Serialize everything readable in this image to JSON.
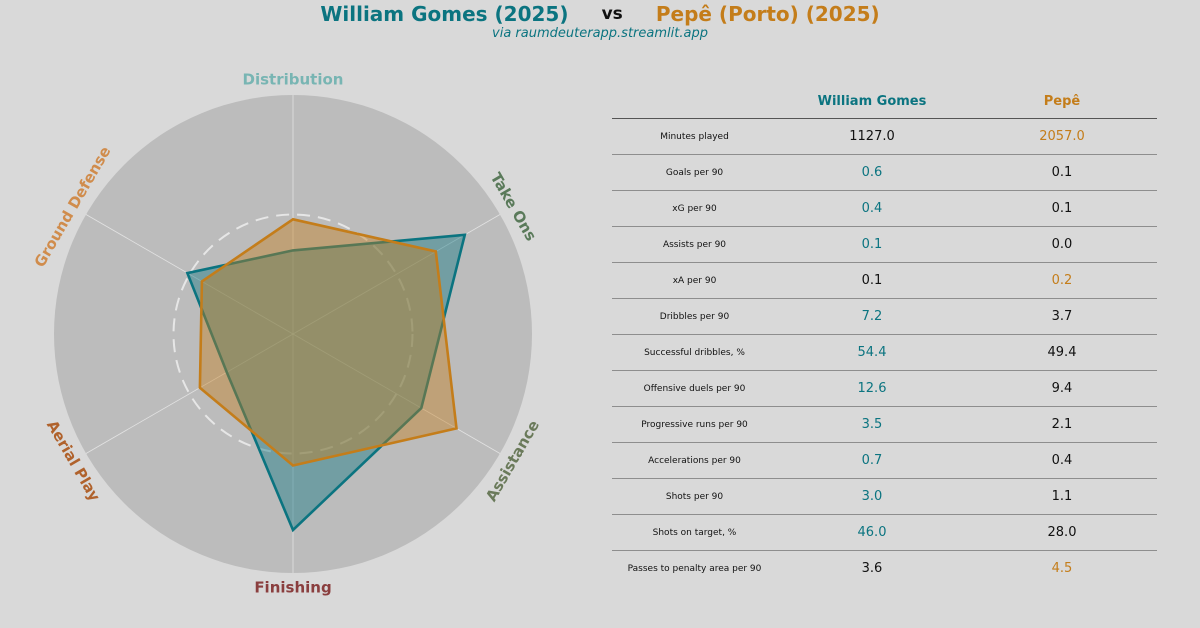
{
  "header": {
    "player1": "William Gomes (2025)",
    "vs": "vs",
    "player2": "Pepê (Porto) (2025)",
    "subtitle": "via raumdeuterapp.streamlit.app"
  },
  "colors": {
    "player1": "#0b7480",
    "player2": "#c47d1a",
    "neutral": "#111111"
  },
  "chart_data": {
    "type": "radar",
    "axes": [
      {
        "label": "Distribution",
        "color": "#78b5b3"
      },
      {
        "label": "Take Ons",
        "color": "#5a7a5a"
      },
      {
        "label": "Assistance",
        "color": "#6a7a5a"
      },
      {
        "label": "Finishing",
        "color": "#8a3e3e"
      },
      {
        "label": "Aerial Play",
        "color": "#b0622c"
      },
      {
        "label": "Ground Defense",
        "color": "#d08c4c"
      }
    ],
    "rlim": [
      0,
      1
    ],
    "reference_ring": 0.5,
    "series": [
      {
        "name": "William Gomes",
        "color": "#0b7480",
        "values": [
          0.35,
          0.83,
          0.62,
          0.82,
          0.32,
          0.51
        ]
      },
      {
        "name": "Pepê",
        "color": "#c47d1a",
        "values": [
          0.48,
          0.69,
          0.79,
          0.55,
          0.45,
          0.44
        ]
      }
    ]
  },
  "table": {
    "headers": [
      "",
      "William Gomes",
      "Pepê"
    ],
    "rows": [
      {
        "metric": "Minutes played",
        "p1": "1127.0",
        "p2": "2057.0",
        "best": 2
      },
      {
        "metric": "Goals per 90",
        "p1": "0.6",
        "p2": "0.1",
        "best": 1
      },
      {
        "metric": "xG per 90",
        "p1": "0.4",
        "p2": "0.1",
        "best": 1
      },
      {
        "metric": "Assists per 90",
        "p1": "0.1",
        "p2": "0.0",
        "best": 1
      },
      {
        "metric": "xA per 90",
        "p1": "0.1",
        "p2": "0.2",
        "best": 2
      },
      {
        "metric": "Dribbles per 90",
        "p1": "7.2",
        "p2": "3.7",
        "best": 1
      },
      {
        "metric": "Successful dribbles, %",
        "p1": "54.4",
        "p2": "49.4",
        "best": 1
      },
      {
        "metric": "Offensive duels per 90",
        "p1": "12.6",
        "p2": "9.4",
        "best": 1
      },
      {
        "metric": "Progressive runs per 90",
        "p1": "3.5",
        "p2": "2.1",
        "best": 1
      },
      {
        "metric": "Accelerations per 90",
        "p1": "0.7",
        "p2": "0.4",
        "best": 1
      },
      {
        "metric": "Shots per 90",
        "p1": "3.0",
        "p2": "1.1",
        "best": 1
      },
      {
        "metric": "Shots on target, %",
        "p1": "46.0",
        "p2": "28.0",
        "best": 1
      },
      {
        "metric": "Passes to penalty area per 90",
        "p1": "3.6",
        "p2": "4.5",
        "best": 2
      }
    ]
  }
}
